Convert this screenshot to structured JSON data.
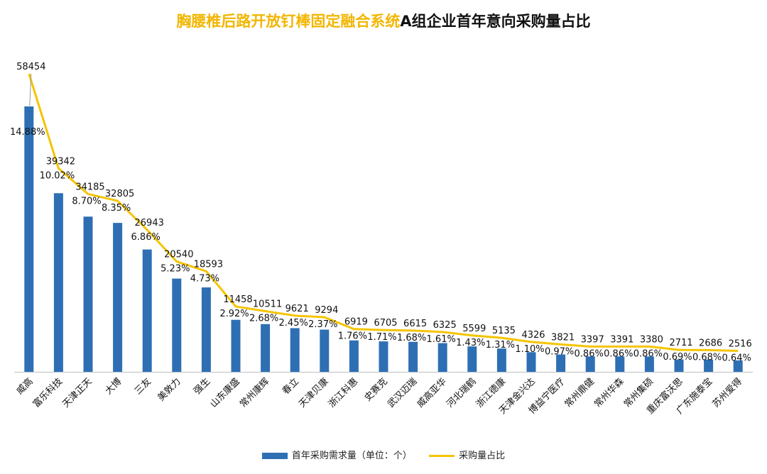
{
  "title_highlight": "胸腰椎后路开放钉棒固定融合系统",
  "title_rest": "A组企业首年意向采购量占比",
  "chart_data": {
    "type": "bar",
    "title": "胸腰椎后路开放钉棒固定融合系统A组企业首年意向采购量占比",
    "categories": [
      "威高",
      "富乐科技",
      "天津正天",
      "大博",
      "三友",
      "美敦力",
      "强生",
      "山东康盛",
      "常州康辉",
      "春立",
      "天津贝康",
      "浙江科惠",
      "史赛克",
      "武汉迈瑞",
      "威高亚华",
      "河北瑞鹤",
      "浙江德康",
      "天津金兴达",
      "博益宁医疗",
      "常州鼎健",
      "常州华森",
      "常州集硕",
      "重庆富沃思",
      "广东施泰宝",
      "苏州爱得"
    ],
    "series": [
      {
        "name": "首年采购需求量（单位：个）",
        "type": "bar",
        "values": [
          58454,
          39342,
          34185,
          32805,
          26943,
          20540,
          18593,
          11458,
          10511,
          9621,
          9294,
          6919,
          6705,
          6615,
          6325,
          5599,
          5135,
          4326,
          3821,
          3397,
          3391,
          3380,
          2711,
          2686,
          2516
        ]
      },
      {
        "name": "采购量占比",
        "type": "line",
        "values": [
          14.88,
          10.02,
          8.7,
          8.35,
          6.86,
          5.23,
          4.73,
          2.92,
          2.68,
          2.45,
          2.37,
          1.76,
          1.71,
          1.68,
          1.61,
          1.43,
          1.31,
          1.1,
          0.97,
          0.86,
          0.86,
          0.86,
          0.69,
          0.68,
          0.64
        ]
      }
    ],
    "value_labels": [
      "58454",
      "39342",
      "34185",
      "32805",
      "26943",
      "20540",
      "18593",
      "11458",
      "10511",
      "9621",
      "9294",
      "6919",
      "6705",
      "6615",
      "6325",
      "5599",
      "5135",
      "4326",
      "3821",
      "3397",
      "3391",
      "3380",
      "2711",
      "2686",
      "2516"
    ],
    "pct_labels": [
      "14.88%",
      "10.02%",
      "8.70%",
      "8.35%",
      "6.86%",
      "5.23%",
      "4.73%",
      "2.92%",
      "2.68%",
      "2.45%",
      "2.37%",
      "1.76%",
      "1.71%",
      "1.68%",
      "1.61%",
      "1.43%",
      "1.31%",
      "1.10%",
      "0.97%",
      "0.86%",
      "0.86%",
      "0.86%",
      "0.69%",
      "0.68%",
      "0.64%"
    ],
    "bar_color": "#2e6fb4",
    "line_color": "#f5c400",
    "legend_position": "bottom",
    "grid": false
  },
  "legend": {
    "bar_label": "首年采购需求量（单位：个）",
    "line_label": "采购量占比"
  }
}
